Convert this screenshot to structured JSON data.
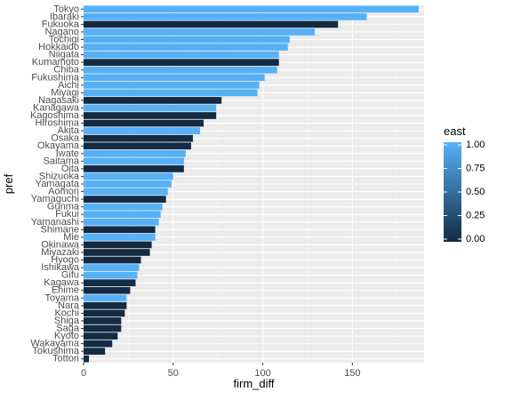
{
  "chart_data": {
    "type": "bar",
    "orientation": "horizontal",
    "xlabel": "firm_diff",
    "ylabel": "pref",
    "xlim": [
      0,
      190
    ],
    "x_ticks": [
      0,
      50,
      100,
      150
    ],
    "x_tick_labels": [
      "0",
      "50",
      "100",
      "150"
    ],
    "grid": true,
    "legend": {
      "title": "east",
      "placement": "right",
      "ticks": [
        "1.00",
        "0.75",
        "0.50",
        "0.25",
        "0.00"
      ],
      "low_color": "#132B43",
      "high_color": "#56B1F7"
    },
    "categories": [
      "Tokyo",
      "Ibaraki",
      "Fukuoka",
      "Nagano",
      "Tochigi",
      "Hokkaido",
      "Niigata",
      "Kumamoto",
      "Chiba",
      "Fukushima",
      "Aichi",
      "Miyagi",
      "Nagasaki",
      "Kanagawa",
      "Kagoshima",
      "Hiroshima",
      "Akita",
      "Osaka",
      "Okayama",
      "Iwate",
      "Saitama",
      "Oita",
      "Shizuoka",
      "Yamagata",
      "Aomori",
      "Yamaguchi",
      "Gunma",
      "Fukui",
      "Yamanashi",
      "Shimane",
      "Mie",
      "Okinawa",
      "Miyazaki",
      "Hyogo",
      "Ishikawa",
      "Gifu",
      "Kagawa",
      "Ehime",
      "Toyama",
      "Nara",
      "Kochi",
      "Shiga",
      "Saga",
      "Kyoto",
      "Wakayama",
      "Tokushima",
      "Tottori"
    ],
    "values": [
      187,
      158,
      142,
      129,
      115,
      114,
      109,
      109,
      108,
      101,
      98,
      97,
      77,
      74,
      74,
      67,
      65,
      61,
      60,
      57,
      56,
      56,
      50,
      49,
      47,
      46,
      44,
      43,
      42,
      40,
      40,
      38,
      37,
      32,
      31,
      30,
      29,
      26,
      24,
      24,
      23,
      21,
      21,
      19,
      16,
      12,
      3
    ],
    "east": [
      1,
      1,
      0,
      1,
      1,
      1,
      1,
      0,
      1,
      1,
      1,
      1,
      0,
      1,
      0,
      0,
      1,
      0,
      0,
      1,
      1,
      0,
      1,
      1,
      1,
      0,
      1,
      1,
      1,
      0,
      1,
      0,
      0,
      0,
      1,
      1,
      0,
      0,
      1,
      0,
      0,
      0,
      0,
      0,
      0,
      0,
      0
    ]
  }
}
